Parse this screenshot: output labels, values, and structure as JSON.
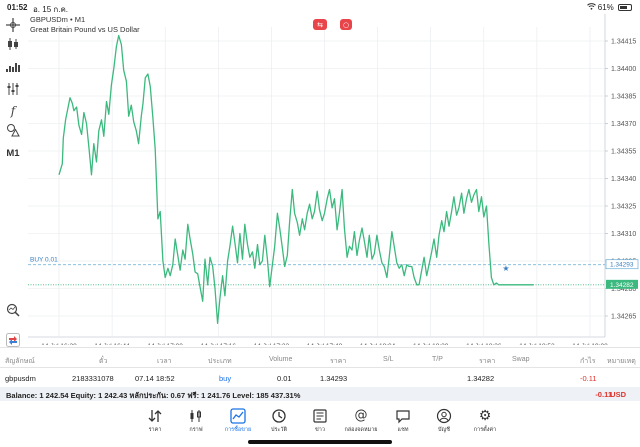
{
  "status": {
    "time": "01:52",
    "date": "อ. 15 ก.ค.",
    "battery": "61%"
  },
  "chart_header": {
    "line1": "GBPUSDm • M1",
    "line2": "Great Britain Pound vs US Dollar"
  },
  "timeframe": "M1",
  "colors": {
    "series": "#3cb97e",
    "buy_line": "#7ab8dc",
    "price_line": "#3cb97e",
    "grid": "#dde3e8",
    "loss": "#e0332e",
    "accent": "#1a73e8"
  },
  "icons": [
    "crosshair-icon",
    "candlestick-icon",
    "bar-chart-icon",
    "indicators-icon",
    "function-icon",
    "shapes-icon",
    "zoom-icon",
    "trade-icon"
  ],
  "chart_data": {
    "type": "line",
    "x_tick_labels": [
      "14 Jul 16:28",
      "14 Jul 16:44",
      "14 Jul 17:00",
      "14 Jul 17:16",
      "14 Jul 17:32",
      "14 Jul 17:48",
      "14 Jul 18:04",
      "14 Jul 18:20",
      "14 Jul 18:36",
      "14 Jul 18:52",
      "14 Jul 19:08"
    ],
    "y_tick_labels": [
      "1.34415",
      "1.34400",
      "1.34385",
      "1.34370",
      "1.34355",
      "1.34340",
      "1.34325",
      "1.34310",
      "1.34295",
      "1.34280",
      "1.34265"
    ],
    "ylim": [
      1.34258,
      1.34422
    ],
    "x_start_minute": 988,
    "x_end_minute": 1148,
    "buy_label": "BUY 0.01",
    "buy_price": 1.34293,
    "buy_price_label": "1.34293",
    "current_price": 1.34282,
    "current_price_label": "1.34282",
    "series": [
      {
        "minutes": [
          988.0,
          989.0,
          989.3,
          990.0,
          991.3,
          992.0,
          992.5,
          993.3,
          994.0,
          994.8,
          995.5,
          996.3,
          997.0,
          997.8,
          998.5,
          999.3,
          1000.0,
          1000.8,
          1001.5,
          1002.3,
          1003.0,
          1003.8,
          1004.5,
          1005.3,
          1006.0,
          1006.8,
          1007.5,
          1008.3,
          1009.0,
          1009.8,
          1010.5,
          1011.3,
          1012.0,
          1012.8,
          1013.3,
          1014.0,
          1014.8,
          1015.5,
          1016.3,
          1017.0,
          1017.8,
          1018.5,
          1019.3,
          1020.0,
          1020.8,
          1021.5,
          1022.3,
          1023.0,
          1023.8,
          1024.5,
          1025.3,
          1026.0,
          1026.8,
          1027.5,
          1028.3,
          1029.0,
          1029.8,
          1030.5,
          1031.3,
          1032.0,
          1032.8,
          1033.5,
          1034.3,
          1035.0,
          1035.8,
          1036.5,
          1037.3,
          1038.0,
          1038.8,
          1039.5,
          1040.3,
          1041.0,
          1041.8,
          1042.5,
          1043.3,
          1044.0,
          1044.8,
          1045.5,
          1046.3,
          1047.0,
          1047.8,
          1048.5,
          1049.3,
          1050.0,
          1050.8,
          1051.5,
          1052.3,
          1053.0,
          1053.8,
          1054.5,
          1055.3,
          1056.0,
          1056.8,
          1057.5,
          1058.3,
          1059.0,
          1059.8,
          1060.5,
          1061.3,
          1062.0,
          1062.8,
          1063.5,
          1064.3,
          1065.0,
          1065.8,
          1066.5,
          1067.3,
          1068.0,
          1068.8,
          1069.5,
          1070.3,
          1071.0,
          1071.8,
          1072.5,
          1073.3,
          1074.0,
          1074.8,
          1075.5,
          1076.3,
          1077.0,
          1077.8,
          1078.5,
          1079.3,
          1080.0,
          1080.8,
          1081.5,
          1082.3,
          1083.0,
          1083.8,
          1084.5,
          1085.3,
          1086.0,
          1086.8,
          1087.5,
          1088.3,
          1089.0,
          1089.8,
          1090.5,
          1091.3,
          1092.0,
          1092.8,
          1093.5,
          1094.3,
          1095.0,
          1095.8,
          1096.5,
          1097.3,
          1098.0,
          1098.8,
          1099.5,
          1100.3,
          1101.0,
          1101.8,
          1102.5,
          1103.3,
          1104.0,
          1104.8,
          1105.5,
          1106.3,
          1107.0,
          1107.8,
          1108.5,
          1109.3,
          1110.0,
          1110.8,
          1111.5,
          1112.3,
          1113.0,
          1113.8,
          1114.5,
          1115.3,
          1116.0,
          1116.8,
          1117.5,
          1118.3,
          1119.0,
          1119.8,
          1120.5,
          1121.3,
          1122.0,
          1122.8,
          1123.5,
          1124.3,
          1125.0,
          1125.8,
          1126.5,
          1127.3,
          1128.0,
          1128.8,
          1129.5,
          1130.3,
          1131.0
        ],
        "y": [
          1.34342,
          1.34348,
          1.34362,
          1.34372,
          1.34384,
          1.34381,
          1.34377,
          1.34379,
          1.34369,
          1.34364,
          1.34376,
          1.3437,
          1.34357,
          1.34342,
          1.34359,
          1.34349,
          1.34366,
          1.34372,
          1.34363,
          1.34382,
          1.34375,
          1.34391,
          1.344,
          1.34412,
          1.34418,
          1.34413,
          1.34399,
          1.34393,
          1.34374,
          1.3438,
          1.34371,
          1.34366,
          1.34359,
          1.34374,
          1.34381,
          1.34395,
          1.34397,
          1.3439,
          1.34373,
          1.34356,
          1.34318,
          1.34322,
          1.34295,
          1.34286,
          1.34291,
          1.34287,
          1.34293,
          1.34307,
          1.34298,
          1.3429,
          1.34301,
          1.34296,
          1.34315,
          1.34307,
          1.34299,
          1.34289,
          1.34288,
          1.34281,
          1.34273,
          1.34296,
          1.34282,
          1.34297,
          1.34292,
          1.3428,
          1.34261,
          1.34275,
          1.34287,
          1.34276,
          1.34295,
          1.34303,
          1.34314,
          1.34305,
          1.34294,
          1.3431,
          1.34296,
          1.34315,
          1.34304,
          1.34297,
          1.343,
          1.34291,
          1.34304,
          1.34293,
          1.34295,
          1.34309,
          1.34296,
          1.34281,
          1.34293,
          1.34303,
          1.34321,
          1.34313,
          1.34302,
          1.34292,
          1.34298,
          1.34317,
          1.34334,
          1.34321,
          1.34316,
          1.34309,
          1.34318,
          1.34312,
          1.34321,
          1.34326,
          1.34318,
          1.34322,
          1.34333,
          1.34323,
          1.34317,
          1.34321,
          1.34329,
          1.34334,
          1.34324,
          1.34329,
          1.34312,
          1.34321,
          1.34334,
          1.34313,
          1.34297,
          1.34303,
          1.34301,
          1.34311,
          1.34298,
          1.34306,
          1.34313,
          1.34306,
          1.34297,
          1.34309,
          1.34296,
          1.34299,
          1.34309,
          1.34301,
          1.34294,
          1.34292,
          1.34286,
          1.34297,
          1.34311,
          1.34303,
          1.34294,
          1.34291,
          1.34293,
          1.34287,
          1.34293,
          1.34292,
          1.34292,
          1.34286,
          1.34282,
          1.34282,
          1.3429,
          1.34297,
          1.34287,
          1.34293,
          1.343,
          1.34307,
          1.34297,
          1.34309,
          1.34317,
          1.34311,
          1.34322,
          1.34314,
          1.34322,
          1.3433,
          1.3432,
          1.34324,
          1.34332,
          1.34321,
          1.34329,
          1.34334,
          1.34327,
          1.34331,
          1.34334,
          1.34322,
          1.3433,
          1.34319,
          1.34325,
          1.34305,
          1.34286,
          1.34282,
          1.34283,
          1.34282,
          1.34282,
          1.34282,
          1.34282,
          1.34282,
          1.34282,
          1.34282,
          1.34282,
          1.34282,
          1.34282,
          1.34282,
          1.34282,
          1.34282,
          1.34282,
          1.34282,
          1.34282,
          1.34282,
          1.34282,
          1.34282
        ]
      }
    ]
  },
  "table": {
    "headers": [
      "สัญลักษณ์",
      "ตั๋ว",
      "เวลา",
      "ประเภท",
      "Volume",
      "ราคา",
      "S/L",
      "T/P",
      "ราคา",
      "Swap",
      "กำไร",
      "หมายเหตุ"
    ],
    "row": [
      "gbpusdm",
      "2183331078",
      "07.14 18:52",
      "buy",
      "0.01",
      "1.34293",
      "",
      "",
      "1.34282",
      "",
      "-0.11",
      ""
    ]
  },
  "balance": {
    "text": "Balance: 1 242.54 Equity: 1 242.43 หลักประกัน: 0.67 ฟรี: 1 241.76 Level: 185 437.31%",
    "pl": "-0.11",
    "currency": "USD"
  },
  "nav": [
    {
      "label": "ราคา",
      "icon": "quotes-icon"
    },
    {
      "label": "กราฟ",
      "icon": "chart-icon"
    },
    {
      "label": "การซื้อขาย",
      "icon": "trade-icon",
      "active": true
    },
    {
      "label": "ประวัติ",
      "icon": "history-icon"
    },
    {
      "label": "ข่าว",
      "icon": "news-icon"
    },
    {
      "label": "กล่องจดหมาย",
      "icon": "mail-icon"
    },
    {
      "label": "แชท",
      "icon": "chat-icon"
    },
    {
      "label": "บัญชี",
      "icon": "account-icon"
    },
    {
      "label": "การตั้งค่า",
      "icon": "settings-icon"
    }
  ]
}
